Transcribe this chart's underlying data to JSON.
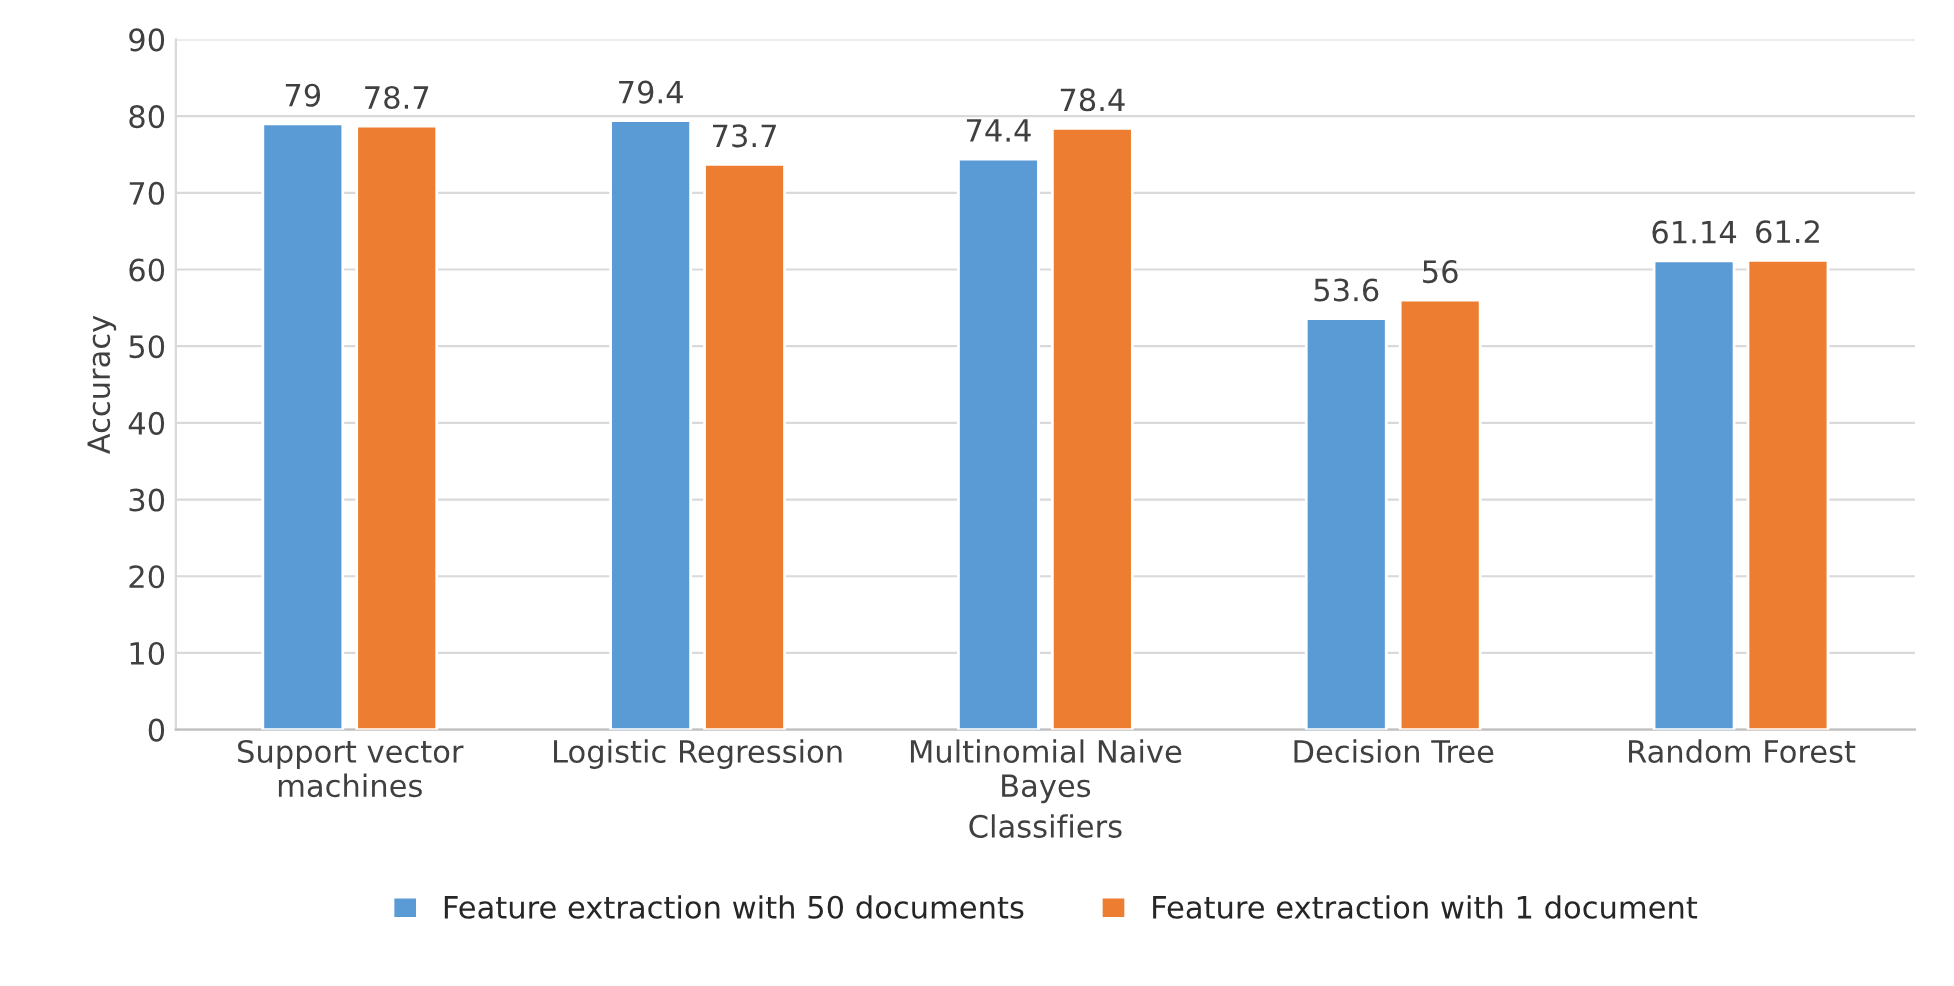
{
  "chart_data": {
    "type": "bar",
    "xlabel": "Classifiers",
    "ylabel": "Accuracy",
    "categories": [
      "Support vector\nmachines",
      "Logistic Regression",
      "Multinomial Naive\nBayes",
      "Decision Tree",
      "Random Forest"
    ],
    "series": [
      {
        "name": "Feature extraction with 50 documents",
        "color": "#5b9bd5",
        "values": [
          79,
          79.4,
          74.4,
          53.6,
          61.14
        ]
      },
      {
        "name": "Feature extraction with 1 document",
        "color": "#ed7d31",
        "values": [
          78.7,
          73.7,
          78.4,
          56,
          61.2
        ]
      }
    ],
    "ylim": [
      0,
      90
    ],
    "yticks": [
      0,
      10,
      20,
      30,
      40,
      50,
      60,
      70,
      80,
      90
    ],
    "grid": "y",
    "legend": "bottom",
    "data_labels": true
  }
}
